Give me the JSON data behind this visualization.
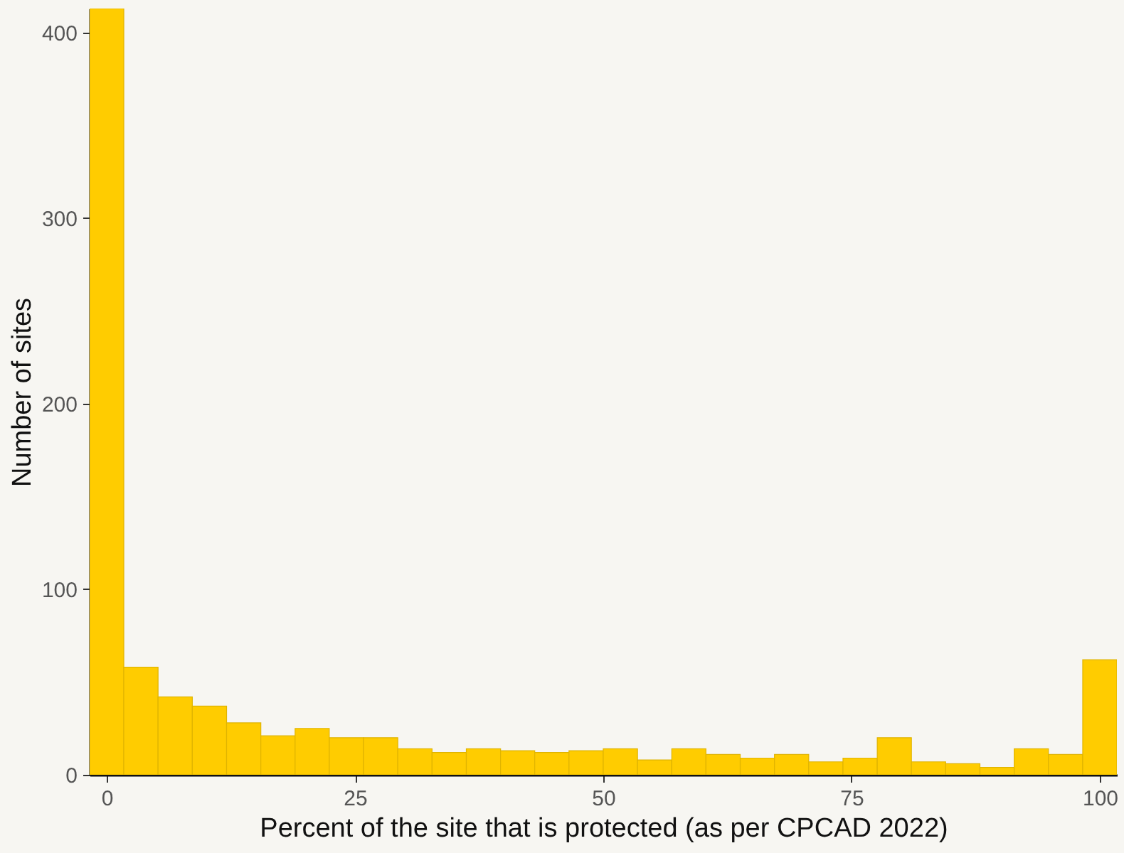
{
  "chart_data": {
    "type": "histogram",
    "xlabel": "Percent of the site that is protected (as per CPCAD 2022)",
    "ylabel": "Number of sites",
    "bins": [
      -1.72,
      1.72,
      5.17,
      8.62,
      12.07,
      15.52,
      18.97,
      22.41,
      25.86,
      29.31,
      32.76,
      36.21,
      39.66,
      43.1,
      46.55,
      50.0,
      53.45,
      56.9,
      60.34,
      63.79,
      67.24,
      70.69,
      74.14,
      77.59,
      81.03,
      84.48,
      87.93,
      91.38,
      94.83,
      98.28,
      101.72
    ],
    "values": [
      413,
      58,
      42,
      37,
      28,
      21,
      25,
      20,
      20,
      14,
      12,
      14,
      13,
      12,
      13,
      14,
      8,
      14,
      11,
      9,
      11,
      7,
      9,
      20,
      7,
      6,
      4,
      14,
      11,
      62
    ],
    "color": "#ffcc00",
    "xlim": [
      -1.72,
      101.72
    ],
    "ylim": [
      0,
      413
    ],
    "xticks": [
      0,
      25,
      50,
      75,
      100
    ],
    "yticks": [
      0,
      100,
      200,
      300,
      400
    ],
    "grid": false
  }
}
